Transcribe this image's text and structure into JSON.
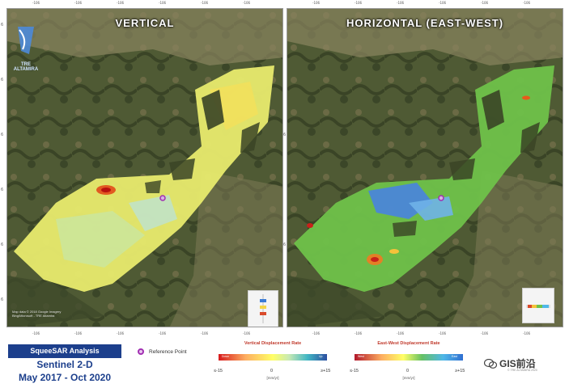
{
  "maps": {
    "left": {
      "title": "VERTICAL"
    },
    "right": {
      "title": "HORIZONTAL (EAST-WEST)"
    }
  },
  "axis": {
    "top_ticks": [
      "-106",
      "-106",
      "-106",
      "-106",
      "-106",
      "-106"
    ],
    "side_ticks": [
      "6",
      "6",
      "6",
      "6",
      "6",
      "6",
      "6",
      "6"
    ]
  },
  "logo": {
    "text": "TRE ALTAMIRA",
    "icon": "tre-altamira-logo"
  },
  "credit": {
    "line1": "Map data © 2018 Google Imagery",
    "line2": "Bing/Microsoft - TRE Altamira"
  },
  "footer": {
    "badge": "SqueeSAR Analysis",
    "satellite": "Sentinel 2-D",
    "period": "May 2017 - Oct 2020",
    "reference_point": "Reference Point"
  },
  "legend_vertical": {
    "title": "Vertical Displacement Rate",
    "left_end": "Down",
    "right_end": "Up",
    "min": "≤-15",
    "mid": "0",
    "max": "≥+15",
    "unit": "[mm/yr]",
    "colors": [
      "#d7191c",
      "#fdae61",
      "#ffff66",
      "#c7e9b4",
      "#41b6c4",
      "#2c4fa0"
    ]
  },
  "legend_horizontal": {
    "title": "East-West Displacement Rate",
    "left_end": "West",
    "right_end": "East",
    "min": "≤-15",
    "mid": "0",
    "max": "≥+15",
    "unit": "[mm/yr]",
    "colors": [
      "#b2182b",
      "#fdae61",
      "#ffff66",
      "#66c164",
      "#4fb7e8",
      "#2f6fd1"
    ]
  },
  "watermark": {
    "text": "GIS前沿",
    "icon": "wechat-icon"
  },
  "corner_note": "© TRE ALTAMIRA 2020"
}
